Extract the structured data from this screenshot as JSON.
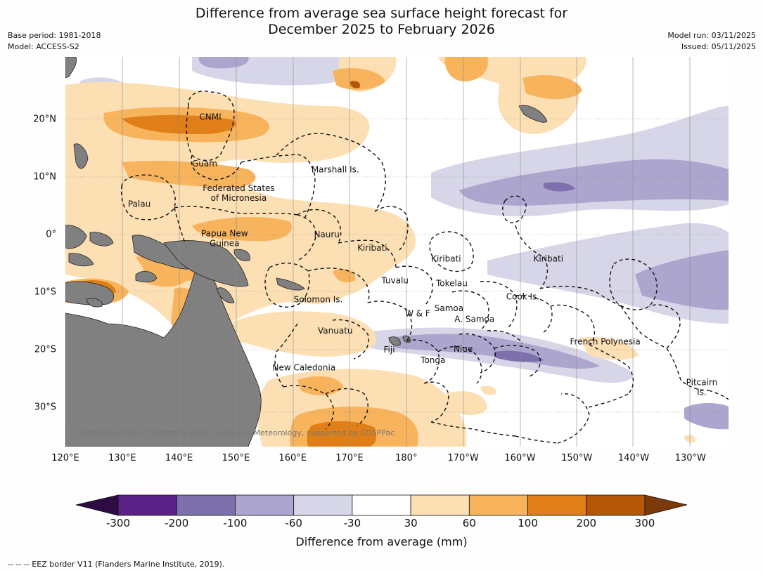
{
  "title_line1": "Difference from average sea surface height forecast for",
  "title_line2": "December 2025 to February 2026",
  "meta_left": [
    "Base period: 1981-2018",
    "Model: ACCESS-S2"
  ],
  "meta_right": [
    "Model run: 03/11/2025",
    "Issued: 05/11/2025"
  ],
  "lat_ticks": [
    {
      "label": "20°N",
      "lat": 20
    },
    {
      "label": "10°N",
      "lat": 10
    },
    {
      "label": "0°",
      "lat": 0
    },
    {
      "label": "10°S",
      "lat": -10
    },
    {
      "label": "20°S",
      "lat": -20
    },
    {
      "label": "30°S",
      "lat": -30
    }
  ],
  "lon_ticks": [
    {
      "label": "120°E",
      "lon": 120
    },
    {
      "label": "130°E",
      "lon": 130
    },
    {
      "label": "140°E",
      "lon": 140
    },
    {
      "label": "150°E",
      "lon": 150
    },
    {
      "label": "160°E",
      "lon": 160
    },
    {
      "label": "170°E",
      "lon": 170
    },
    {
      "label": "180°",
      "lon": 180
    },
    {
      "label": "170°W",
      "lon": 190
    },
    {
      "label": "160°W",
      "lon": 200
    },
    {
      "label": "150°W",
      "lon": 210
    },
    {
      "label": "140°W",
      "lon": 220
    },
    {
      "label": "130°W",
      "lon": 230
    }
  ],
  "regions": [
    {
      "name": "CNMI",
      "lon": 145.5,
      "lat": 20.4
    },
    {
      "name": "Guam",
      "lon": 144.5,
      "lat": 12.3
    },
    {
      "name": "Marshall Is.",
      "lon": 167.5,
      "lat": 11.3
    },
    {
      "name": "Federated States\nof Micronesia",
      "lon": 150.5,
      "lat": 7.2
    },
    {
      "name": "Palau",
      "lon": 133,
      "lat": 5.3
    },
    {
      "name": "Papua New\nGuinea",
      "lon": 148,
      "lat": -0.7
    },
    {
      "name": "Nauru",
      "lon": 166,
      "lat": 0
    },
    {
      "name": "Kiribati",
      "lon": 174,
      "lat": -2.3
    },
    {
      "name": "Kiribati",
      "lon": 187,
      "lat": -4.2
    },
    {
      "name": "Kiribati",
      "lon": 205,
      "lat": -4.2
    },
    {
      "name": "Tuvalu",
      "lon": 178,
      "lat": -8
    },
    {
      "name": "Tokelau",
      "lon": 188,
      "lat": -8.5
    },
    {
      "name": "Cook Is.",
      "lon": 200.5,
      "lat": -10.8
    },
    {
      "name": "Solomon Is.",
      "lon": 164.5,
      "lat": -11.3
    },
    {
      "name": "Samoa",
      "lon": 187.5,
      "lat": -12.8
    },
    {
      "name": "W & F",
      "lon": 182,
      "lat": -13.7
    },
    {
      "name": "A. Samoa",
      "lon": 192,
      "lat": -14.7
    },
    {
      "name": "Vanuatu",
      "lon": 167.5,
      "lat": -16.7
    },
    {
      "name": "Fiji",
      "lon": 177,
      "lat": -20
    },
    {
      "name": "Niue",
      "lon": 190,
      "lat": -19.9
    },
    {
      "name": "Tonga",
      "lon": 184.7,
      "lat": -21.8
    },
    {
      "name": "French Polynesia",
      "lon": 215,
      "lat": -18.6
    },
    {
      "name": "New Caledonia",
      "lon": 162,
      "lat": -23.1
    },
    {
      "name": "Pitcairn\nIs.",
      "lon": 232,
      "lat": -26.5
    }
  ],
  "colorbar": {
    "labels": [
      "-300",
      "-200",
      "-100",
      "-60",
      "-30",
      "30",
      "60",
      "100",
      "200",
      "300"
    ],
    "colors": [
      "#5a2287",
      "#7e70ac",
      "#aca6cf",
      "#d7d6e8",
      "#ffffff",
      "#fddfb4",
      "#f8b35d",
      "#e07f17",
      "#b45709"
    ],
    "under_color": "#2e0b45",
    "over_color": "#7c3a08",
    "title": "Difference from average (mm)"
  },
  "copyright": "© Commonwealth of Australia 2025, Bureau of Meteorology, supported by COSPPac",
  "footnote": "--  --  -- EEZ border V11 (Flanders Marine Institute, 2019)."
}
